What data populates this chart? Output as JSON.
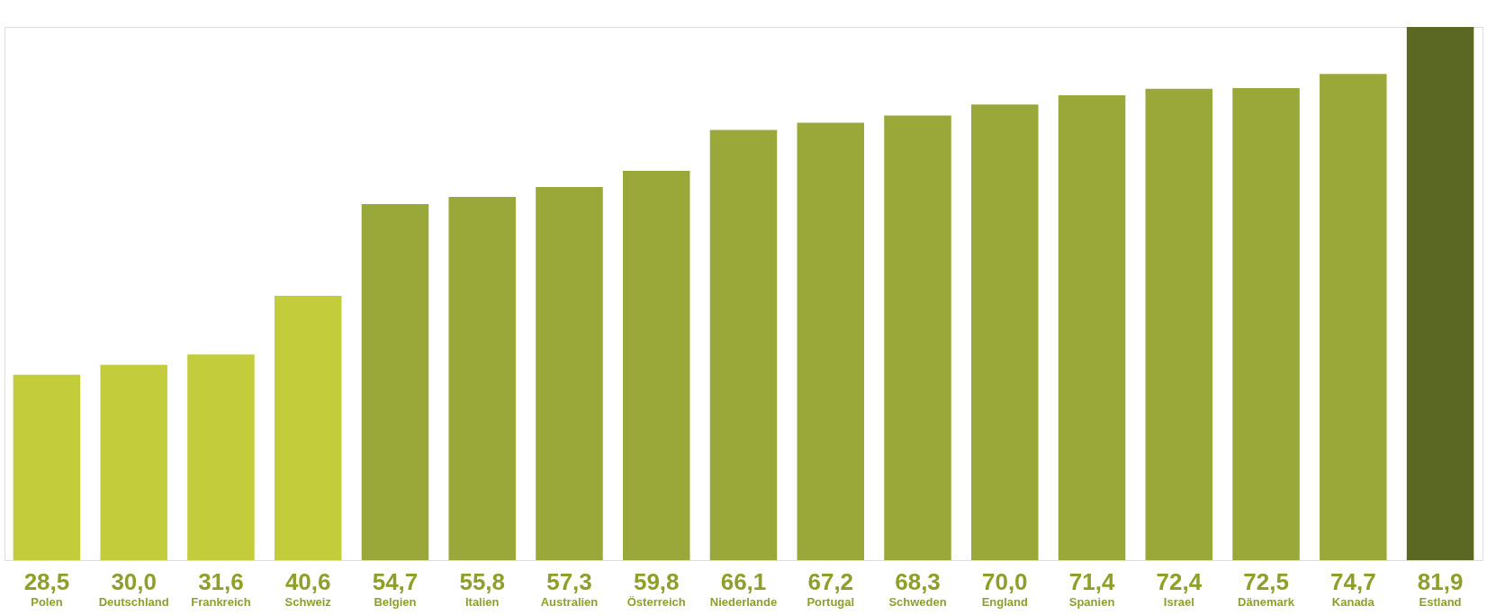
{
  "chart_data": {
    "type": "bar",
    "categories": [
      "Polen",
      "Deutschland",
      "Frankreich",
      "Schweiz",
      "Belgien",
      "Italien",
      "Australien",
      "Österreich",
      "Niederlande",
      "Portugal",
      "Schweden",
      "England",
      "Spanien",
      "Israel",
      "Dänemark",
      "Kanada",
      "Estland"
    ],
    "values": [
      28.5,
      30.0,
      31.6,
      40.6,
      54.7,
      55.8,
      57.3,
      59.8,
      66.1,
      67.2,
      68.3,
      70.0,
      71.4,
      72.4,
      72.5,
      74.7,
      81.9
    ],
    "value_labels": [
      "28,5",
      "30,0",
      "31,6",
      "40,6",
      "54,7",
      "55,8",
      "57,3",
      "59,8",
      "66,1",
      "67,2",
      "68,3",
      "70,0",
      "71,4",
      "72,4",
      "72,5",
      "74,7",
      "81,9"
    ],
    "colors": [
      "#c3cc3b",
      "#c3cc3b",
      "#c3cc3b",
      "#c3cc3b",
      "#9aa83a",
      "#9aa83a",
      "#9aa83a",
      "#9aa83a",
      "#9aa83a",
      "#9aa83a",
      "#9aa83a",
      "#9aa83a",
      "#9aa83a",
      "#9aa83a",
      "#9aa83a",
      "#9aa83a",
      "#5b6823"
    ],
    "orientation": "vertical"
  }
}
